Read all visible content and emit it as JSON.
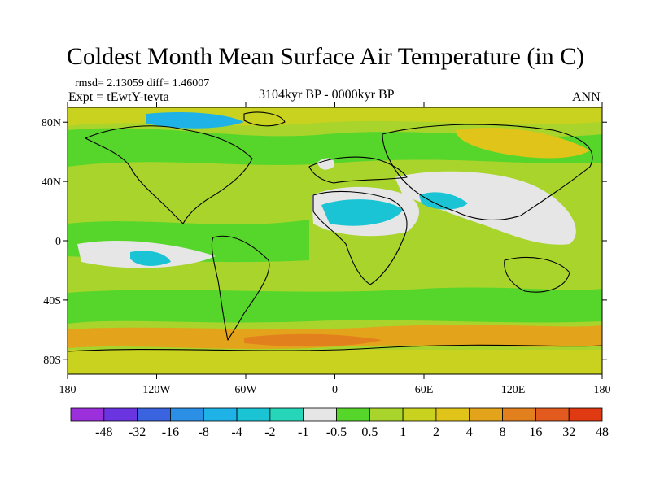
{
  "title": "Coldest Month Mean Surface Air Temperature (in C)",
  "stats_line": "rmsd= 2.13059 diff= 1.46007",
  "expt_line": "Expt = tEwtY-tevta",
  "period": "3104kyr BP - 0000kyr BP",
  "season": "ANN",
  "map": {
    "lon_range": [
      -180,
      180
    ],
    "lat_range": [
      -90,
      90
    ],
    "lat_ticks": [
      {
        "value": 80,
        "label": "80N"
      },
      {
        "value": 40,
        "label": "40N"
      },
      {
        "value": 0,
        "label": "0"
      },
      {
        "value": -40,
        "label": "40S"
      },
      {
        "value": -80,
        "label": "80S"
      }
    ],
    "lon_ticks": [
      {
        "value": -180,
        "label": "180"
      },
      {
        "value": -120,
        "label": "120W"
      },
      {
        "value": -60,
        "label": "60W"
      },
      {
        "value": 0,
        "label": "0"
      },
      {
        "value": 60,
        "label": "60E"
      },
      {
        "value": 120,
        "label": "120E"
      },
      {
        "value": 180,
        "label": "180"
      }
    ],
    "background_color": "#a8d42c"
  },
  "colorbar": {
    "colors": [
      "#9b2fdc",
      "#6a35e0",
      "#3a63e0",
      "#2b8fe6",
      "#1fb2e6",
      "#1ac4d4",
      "#27d6b8",
      "#e6e6e6",
      "#56d62a",
      "#a8d42c",
      "#c9d21e",
      "#e1c41a",
      "#e3a41c",
      "#e3801e",
      "#e35a1e",
      "#e03a12"
    ],
    "labels": [
      "-48",
      "-32",
      "-16",
      "-8",
      "-4",
      "-2",
      "-1",
      "-0.5",
      "0.5",
      "1",
      "2",
      "4",
      "8",
      "16",
      "32",
      "48"
    ]
  }
}
